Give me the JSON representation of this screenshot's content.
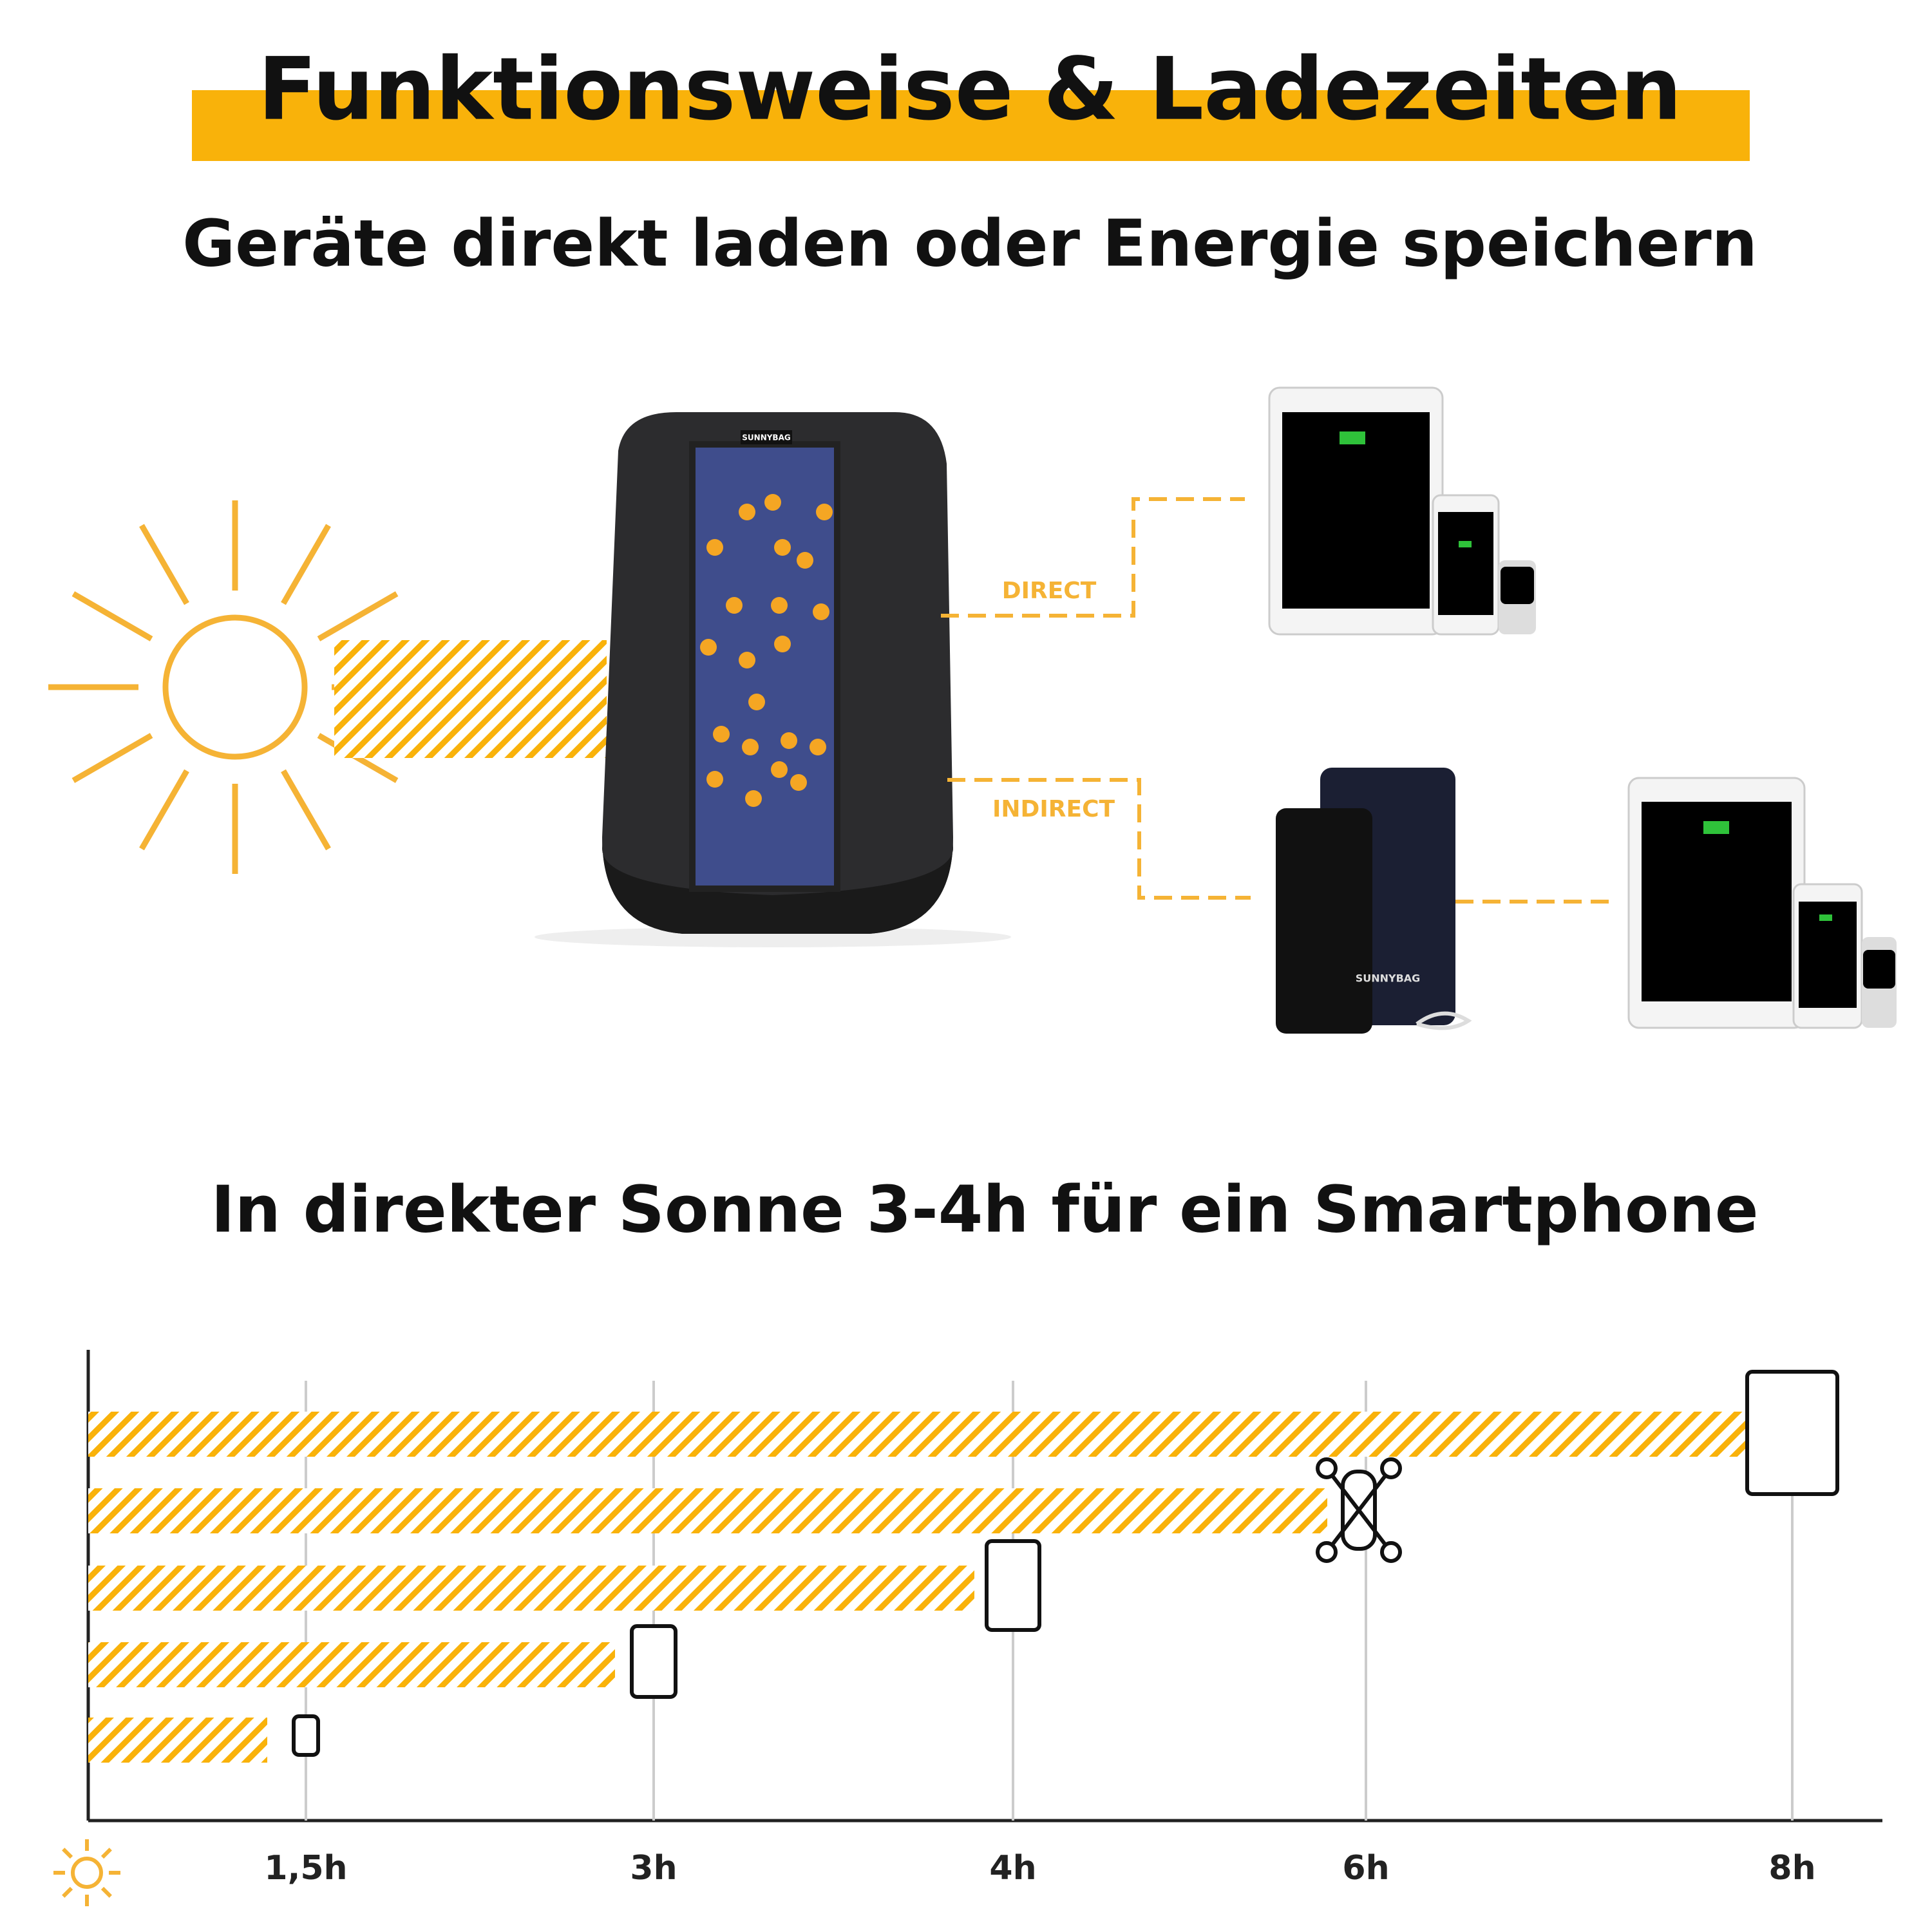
{
  "header": {
    "title": "Funktionsweise & Ladezeiten",
    "subtitle": "Geräte direkt laden oder Energie speichern"
  },
  "diagram": {
    "direct_label": "DIRECT",
    "indirect_label": "INDIRECT",
    "brand": "SUNNYBAG"
  },
  "chart_data": {
    "type": "bar",
    "title": "In direkter Sonne 3-4h für ein Smartphone",
    "categories": [
      "1,5h",
      "3h",
      "4h",
      "6h",
      "8h"
    ],
    "values": [
      1.5,
      3,
      4,
      6,
      8
    ],
    "color": "#f9b20a",
    "grid": true
  }
}
